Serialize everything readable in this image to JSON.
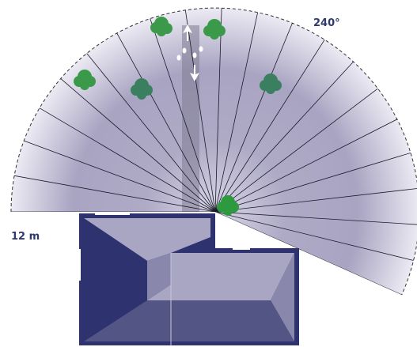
{
  "labels": {
    "angle": "240°",
    "range": "12 m"
  }
}
